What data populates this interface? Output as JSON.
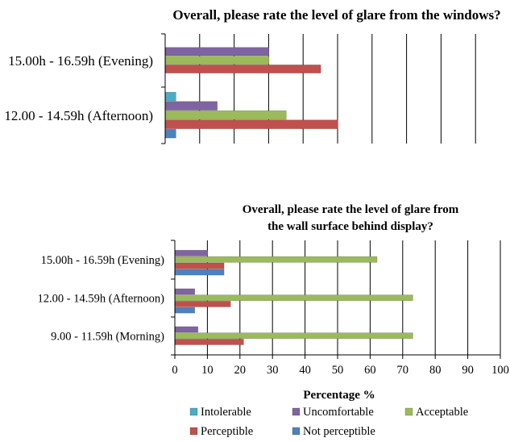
{
  "colors": {
    "intolerable": "#4bacc6",
    "uncomfortable": "#8064a2",
    "acceptable": "#9bbb59",
    "perceptible": "#c0504d",
    "not_perceptible": "#4f81bd"
  },
  "chart_data": [
    {
      "type": "bar",
      "orientation": "horizontal",
      "title": "Overall, please rate the level of glare from the windows?",
      "categories": [
        "15.00h - 16.59h (Evening)",
        "12.00 - 14.59h (Afternoon)"
      ],
      "series": [
        {
          "name": "Intolerable",
          "values": [
            0,
            3
          ]
        },
        {
          "name": "Uncomfortable",
          "values": [
            30,
            15
          ]
        },
        {
          "name": "Acceptable",
          "values": [
            30,
            35
          ]
        },
        {
          "name": "Perceptible",
          "values": [
            45,
            50
          ]
        },
        {
          "name": "Not perceptible",
          "values": [
            0,
            3
          ]
        }
      ],
      "xlim": [
        0,
        100
      ],
      "grid": true
    },
    {
      "type": "bar",
      "orientation": "horizontal",
      "title_lines": [
        "Overall, please rate the level of glare from",
        "the wall surface behind display?"
      ],
      "categories": [
        "15.00h - 16.59h (Evening)",
        "12.00 - 14.59h (Afternoon)",
        "9.00 - 11.59h (Morning)"
      ],
      "series": [
        {
          "name": "Intolerable",
          "values": [
            0,
            0,
            0
          ]
        },
        {
          "name": "Uncomfortable",
          "values": [
            10,
            6,
            7
          ]
        },
        {
          "name": "Acceptable",
          "values": [
            62,
            73,
            73
          ]
        },
        {
          "name": "Perceptible",
          "values": [
            15,
            17,
            21
          ]
        },
        {
          "name": "Not perceptible",
          "values": [
            15,
            6,
            0
          ]
        }
      ],
      "xlim": [
        0,
        100
      ],
      "xticks": [
        "0",
        "10",
        "20",
        "30",
        "40",
        "50",
        "60",
        "70",
        "80",
        "90",
        "100"
      ],
      "xlabel": "Percentage %",
      "grid": true,
      "legend": [
        {
          "name": "Intolerable",
          "color_key": "intolerable"
        },
        {
          "name": "Uncomfortable",
          "color_key": "uncomfortable"
        },
        {
          "name": "Acceptable",
          "color_key": "acceptable"
        },
        {
          "name": "Perceptible",
          "color_key": "perceptible"
        },
        {
          "name": "Not perceptible",
          "color_key": "not_perceptible"
        }
      ],
      "legend_position": "bottom"
    }
  ]
}
